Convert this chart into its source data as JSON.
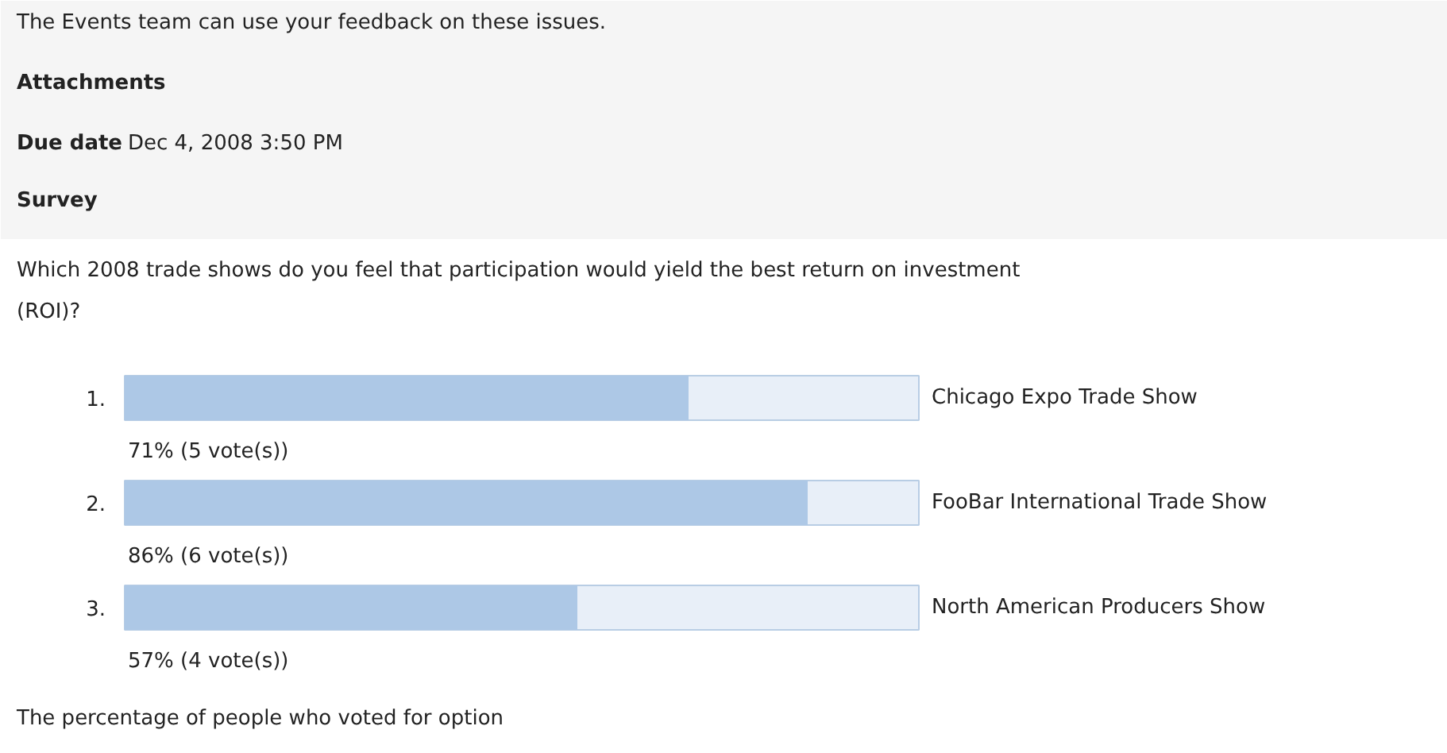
{
  "chart_data": {
    "type": "bar",
    "orientation": "horizontal",
    "title": "Which 2008 trade shows do you feel that participation would yield the best return on investment (ROI)?",
    "categories": [
      "Chicago Expo Trade Show",
      "FooBar International Trade Show",
      "North American Producers Show"
    ],
    "values": [
      71,
      86,
      57
    ],
    "value_labels": [
      "71% (5 vote(s))",
      "86% (6 vote(s))",
      "57% (4 vote(s))"
    ],
    "color": "#adc8e6",
    "xlim": [
      0,
      100
    ],
    "annotations": [
      "The Events team can use your feedback on these issues.",
      "Attachments",
      "Due date",
      "Dec 4, 2008 3:50 PM",
      "Survey",
      "1.",
      "2.",
      "3.",
      "The percentage of people who voted for option"
    ]
  }
}
